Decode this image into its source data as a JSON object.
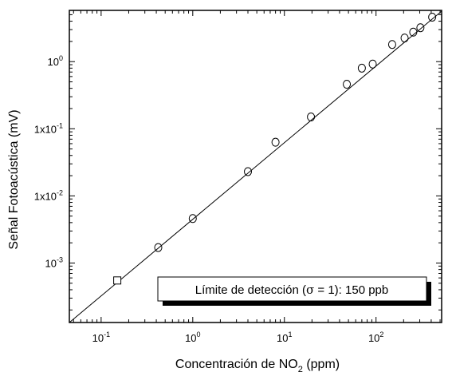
{
  "chart_data": {
    "type": "scatter",
    "x_scale": "log",
    "y_scale": "log",
    "xlim": [
      0.045,
      520
    ],
    "ylim": [
      0.00013,
      5.8
    ],
    "xlabel": {
      "pre": "Concentración de NO",
      "sub": "2",
      "post": " (ppm)"
    },
    "ylabel": "Señal Fotoacústica (mV)",
    "x_ticks": [
      {
        "value": 0.1,
        "base": "10",
        "exp": "-1"
      },
      {
        "value": 1,
        "base": "10",
        "exp": "0"
      },
      {
        "value": 10,
        "base": "10",
        "exp": "1"
      },
      {
        "value": 100,
        "base": "10",
        "exp": "2"
      }
    ],
    "y_ticks": [
      {
        "value": 0.001,
        "base": "10",
        "exp": "-3"
      },
      {
        "value": 0.01,
        "base": "1x10",
        "exp": "-2"
      },
      {
        "value": 0.1,
        "base": "1x10",
        "exp": "-1"
      },
      {
        "value": 1,
        "base": "10",
        "exp": "0"
      }
    ],
    "series": [
      {
        "marker": "circle",
        "points": [
          [
            0.42,
            0.0017
          ],
          [
            1.0,
            0.0046
          ],
          [
            4.0,
            0.023
          ],
          [
            8.0,
            0.063
          ],
          [
            19.5,
            0.15
          ],
          [
            48,
            0.46
          ],
          [
            70,
            0.8
          ],
          [
            92,
            0.92
          ],
          [
            150,
            1.8
          ],
          [
            205,
            2.25
          ],
          [
            255,
            2.75
          ],
          [
            305,
            3.2
          ],
          [
            410,
            4.6
          ]
        ]
      },
      {
        "marker": "square",
        "points": [
          [
            0.15,
            0.00055
          ]
        ]
      }
    ],
    "fit_line": {
      "x": [
        0.045,
        520
      ],
      "y": [
        0.00013,
        5.65
      ]
    },
    "annotation": {
      "pre": "Límite de detección (",
      "sigma": "σ",
      "post": " = 1): 150 ppb"
    },
    "grid": false,
    "legend": "none"
  }
}
